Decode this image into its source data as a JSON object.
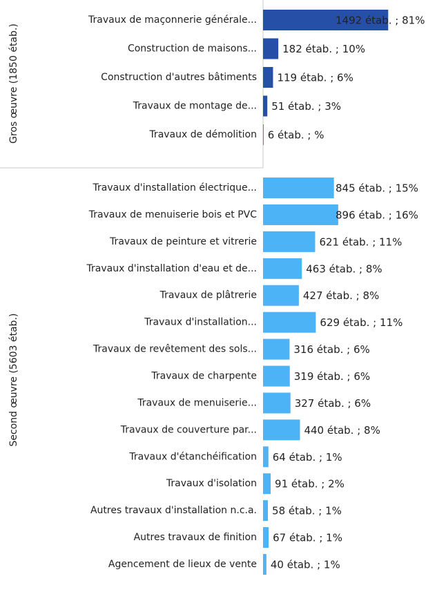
{
  "chart_data": {
    "type": "bar",
    "series": [
      {
        "name": "Gros œuvre (1850 étab.)",
        "color": "#2650a8",
        "categories": [
          "Travaux de maçonnerie générale...",
          "Construction de maisons...",
          "Construction d'autres bâtiments",
          "Travaux de montage de...",
          "Travaux de démolition"
        ],
        "values": [
          1492,
          182,
          119,
          51,
          6
        ],
        "value_labels": [
          "1492 étab. ; 81%",
          "182 étab. ; 10%",
          "119 étab. ; 6%",
          "51 étab. ; 3%",
          "6 étab. ; %"
        ]
      },
      {
        "name": "Second œuvre (5603 étab.)",
        "color": "#4db3f7",
        "categories": [
          "Travaux d'installation électrique...",
          "Travaux de menuiserie bois et PVC",
          "Travaux de peinture et vitrerie",
          "Travaux d'installation d'eau et de...",
          "Travaux de plâtrerie",
          "Travaux d'installation...",
          "Travaux de revêtement des sols...",
          "Travaux de charpente",
          "Travaux de menuiserie...",
          "Travaux de couverture par...",
          "Travaux d'étanchéification",
          "Travaux d'isolation",
          "Autres travaux d'installation n.c.a.",
          "Autres travaux de finition",
          "Agencement de lieux de vente"
        ],
        "values": [
          845,
          896,
          621,
          463,
          427,
          629,
          316,
          319,
          327,
          440,
          64,
          91,
          58,
          67,
          40
        ],
        "value_labels": [
          "845 étab. ; 15%",
          "896 étab. ; 16%",
          "621 étab. ; 11%",
          "463 étab. ; 8%",
          "427 étab. ; 8%",
          "629 étab. ; 11%",
          "316 étab. ; 6%",
          "319 étab. ; 6%",
          "327 étab. ; 6%",
          "440 étab. ; 8%",
          "64 étab. ; 1%",
          "91 étab. ; 2%",
          "58 étab. ; 1%",
          "67 étab. ; 1%",
          "40 étab. ; 1%"
        ]
      }
    ]
  }
}
